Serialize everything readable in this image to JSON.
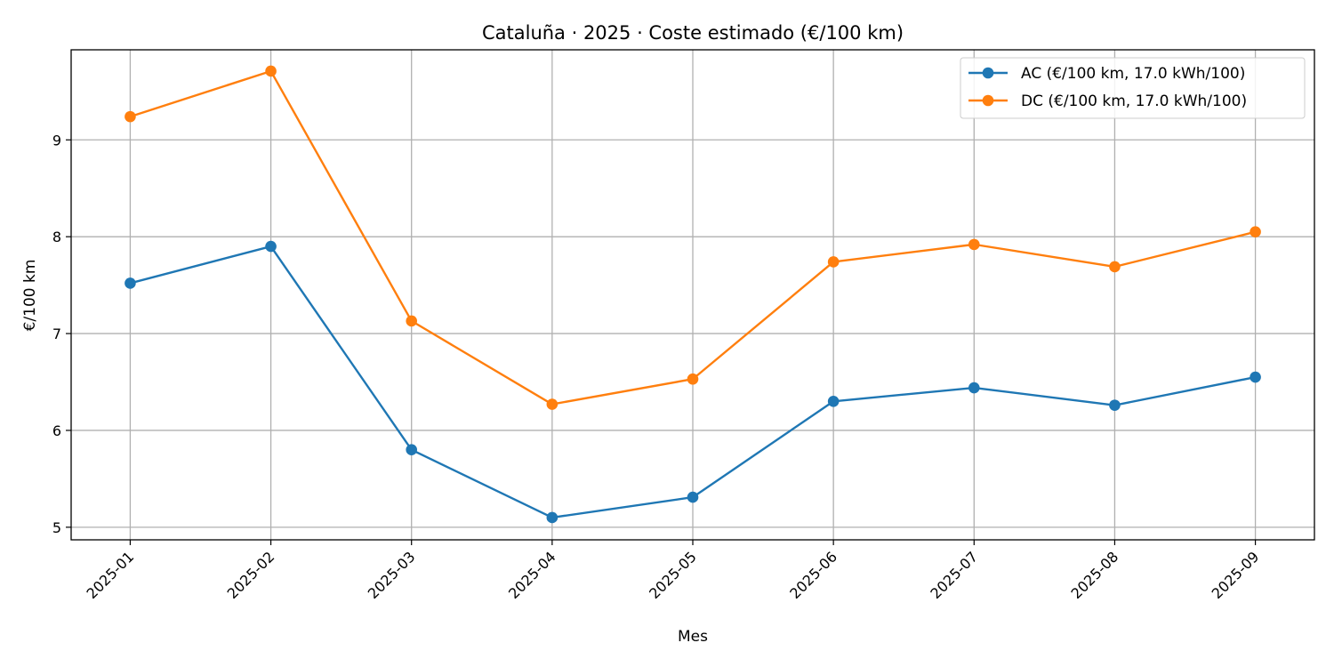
{
  "chart_data": {
    "type": "line",
    "title": "Cataluña · 2025 · Coste estimado (€/100 km)",
    "xlabel": "Mes",
    "ylabel": "€/100 km",
    "categories": [
      "2025-01",
      "2025-02",
      "2025-03",
      "2025-04",
      "2025-05",
      "2025-06",
      "2025-07",
      "2025-08",
      "2025-09"
    ],
    "x_positions": [
      1,
      2,
      3,
      4,
      5,
      6,
      7,
      8,
      9
    ],
    "yticks": [
      5,
      6,
      7,
      8,
      9
    ],
    "ytick_labels": [
      "5",
      "6",
      "7",
      "8",
      "9"
    ],
    "ylim": [
      4.87,
      9.93
    ],
    "grid": true,
    "legend_position": "top-right",
    "series": [
      {
        "name": "AC (€/100 km, 17.0 kWh/100)",
        "color": "#1f77b4",
        "values": [
          7.52,
          7.9,
          5.8,
          5.1,
          5.31,
          6.3,
          6.44,
          6.26,
          6.55
        ]
      },
      {
        "name": "DC (€/100 km, 17.0 kWh/100)",
        "color": "#ff7f0e",
        "values": [
          9.24,
          9.71,
          7.13,
          6.27,
          6.53,
          7.74,
          7.92,
          7.69,
          8.05
        ]
      }
    ]
  }
}
